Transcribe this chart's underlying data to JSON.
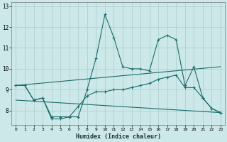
{
  "xlabel": "Humidex (Indice chaleur)",
  "bg_color": "#cce8e8",
  "line_color": "#1a6b6b",
  "grid_color": "#aacccc",
  "line1_x": [
    0,
    1,
    2,
    3,
    4,
    5,
    6,
    7,
    8,
    9,
    10,
    11,
    12,
    13,
    14,
    15,
    16,
    17,
    18,
    19,
    20,
    21,
    22,
    23
  ],
  "line1_y": [
    9.2,
    9.2,
    8.5,
    8.6,
    7.6,
    7.6,
    7.7,
    7.7,
    9.0,
    10.5,
    12.6,
    11.5,
    10.1,
    10.0,
    10.0,
    9.9,
    11.4,
    11.6,
    11.4,
    9.2,
    10.1,
    8.6,
    8.1,
    7.9
  ],
  "line2_x": [
    0,
    1,
    2,
    3,
    4,
    5,
    6,
    7,
    8,
    9,
    10,
    11,
    12,
    13,
    14,
    15,
    16,
    17,
    18,
    19,
    20,
    21,
    22,
    23
  ],
  "line2_y": [
    9.2,
    9.2,
    8.5,
    8.6,
    7.7,
    7.7,
    7.7,
    8.2,
    8.7,
    8.9,
    8.9,
    9.0,
    9.0,
    9.1,
    9.2,
    9.3,
    9.5,
    9.6,
    9.7,
    9.1,
    9.1,
    8.6,
    8.1,
    7.9
  ],
  "line3_x": [
    0,
    23
  ],
  "line3_y": [
    9.2,
    10.1
  ],
  "line4_x": [
    0,
    23
  ],
  "line4_y": [
    8.5,
    7.9
  ],
  "xlim": [
    -0.5,
    23.5
  ],
  "ylim": [
    7.3,
    13.2
  ],
  "xticks": [
    0,
    1,
    2,
    3,
    4,
    5,
    6,
    7,
    8,
    9,
    10,
    11,
    12,
    13,
    14,
    15,
    16,
    17,
    18,
    19,
    20,
    21,
    22,
    23
  ],
  "yticks": [
    8,
    9,
    10,
    11,
    12,
    13
  ]
}
